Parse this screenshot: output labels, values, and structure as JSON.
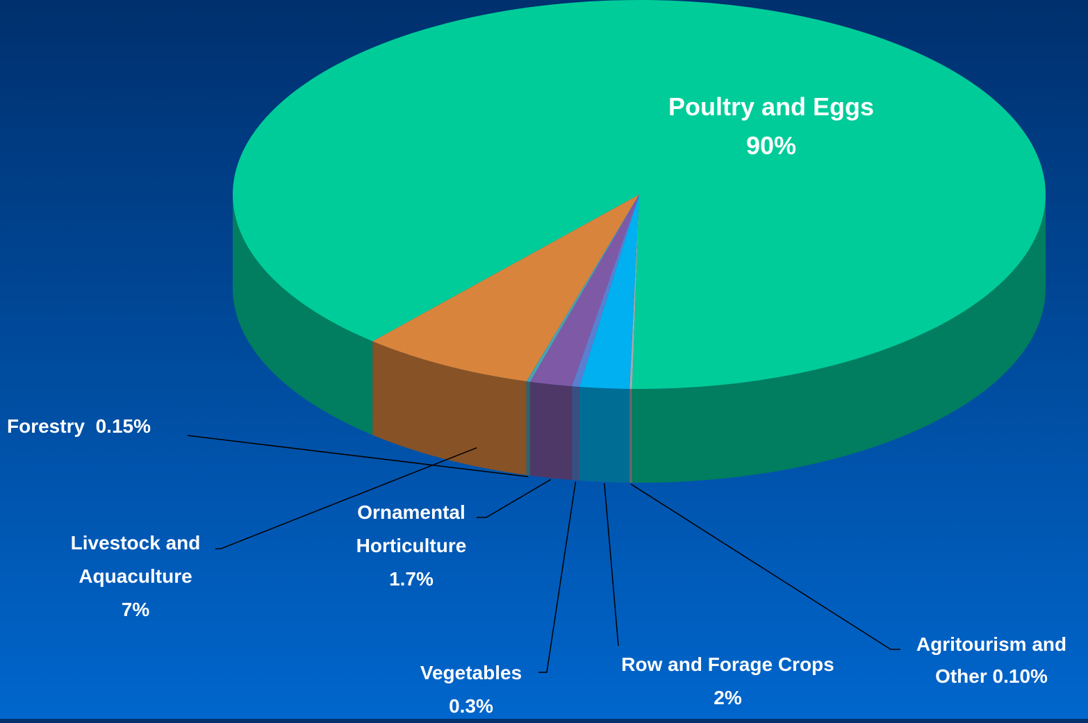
{
  "chart_data": {
    "type": "pie3d",
    "categories": [
      "Agritourism and Other",
      "Row and Forage Crops",
      "Vegetables",
      "Ornamental Horticulture",
      "Forestry",
      "Livestock and Aquaculture",
      "Poultry and Eggs"
    ],
    "values": [
      0.1,
      2,
      0.3,
      1.7,
      0.15,
      7,
      90
    ],
    "value_labels": [
      "0.10%",
      "2%",
      "0.3%",
      "1.7%",
      "0.15%",
      "7%",
      "90%"
    ],
    "colors": [
      "#a8a8a8",
      "#00b0f0",
      "#5b7fd0",
      "#7e5aa6",
      "#4aa3ad",
      "#d9843c",
      "#00cc99"
    ]
  }
}
